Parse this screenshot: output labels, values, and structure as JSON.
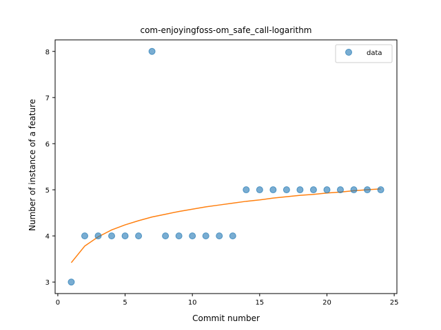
{
  "chart_data": {
    "type": "scatter",
    "title": "com-enjoyingfoss-om_safe_call-logarithm",
    "xlabel": "Commit number",
    "ylabel": "Number of instance of a feature",
    "xlim": [
      -0.2,
      25.2
    ],
    "ylim": [
      2.75,
      8.25
    ],
    "xticks": [
      0,
      5,
      10,
      15,
      20,
      25
    ],
    "yticks": [
      3,
      4,
      5,
      6,
      7,
      8
    ],
    "grid": false,
    "legend_position": "top-right",
    "series": [
      {
        "name": "data",
        "kind": "scatter",
        "color": "#1f77b4",
        "x": [
          1,
          2,
          3,
          4,
          5,
          6,
          7,
          8,
          9,
          10,
          11,
          12,
          13,
          14,
          15,
          16,
          17,
          18,
          19,
          20,
          21,
          22,
          23,
          24
        ],
        "y": [
          3,
          4,
          4,
          4,
          4,
          4,
          8,
          4,
          4,
          4,
          4,
          4,
          4,
          5,
          5,
          5,
          5,
          5,
          5,
          5,
          5,
          5,
          5,
          5
        ]
      },
      {
        "kind": "line",
        "color": "#ff7f0e",
        "x": [
          1,
          2,
          3,
          4,
          5,
          6,
          7,
          8,
          9,
          10,
          11,
          12,
          13,
          14,
          15,
          16,
          17,
          18,
          19,
          20,
          21,
          22,
          23,
          24
        ],
        "y": [
          3.42,
          3.78,
          3.98,
          4.13,
          4.24,
          4.33,
          4.41,
          4.47,
          4.53,
          4.58,
          4.63,
          4.67,
          4.71,
          4.75,
          4.78,
          4.82,
          4.85,
          4.88,
          4.9,
          4.93,
          4.95,
          4.98,
          5.0,
          5.02
        ]
      }
    ]
  }
}
